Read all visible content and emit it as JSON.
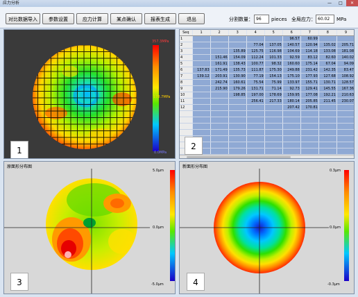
{
  "window": {
    "title": "应力分析",
    "min_label": "—",
    "max_label": "□",
    "close_label": "✕"
  },
  "toolbar": {
    "buttons": [
      "对比数据导入",
      "参数设置",
      "应力计算",
      "某点确认",
      "报表生成",
      "退出"
    ],
    "split_label": "分割数量：",
    "split_value": "96",
    "split_unit": "pieces",
    "stress_label": "全局应力：",
    "stress_value": "60.02",
    "stress_unit": "MPa"
  },
  "panel1": {
    "badge": "1",
    "scale_max": "357.3MPa",
    "scale_mid": "178.7MPa",
    "scale_min": "0.0MPa"
  },
  "panel2": {
    "badge": "2",
    "headers": [
      "Seq",
      "1",
      "2",
      "3",
      "4",
      "5",
      "6",
      "7",
      "8",
      "9"
    ],
    "rows": [
      [
        "1",
        "",
        "",
        "",
        "",
        "",
        "96.57",
        "60.99",
        "",
        ""
      ],
      [
        "2",
        "",
        "",
        "",
        "77.04",
        "137.05",
        "140.57",
        "120.94",
        "135.02",
        "205.71"
      ],
      [
        "3",
        "",
        "",
        "135.89",
        "125.75",
        "116.98",
        "104.69",
        "114.18",
        "133.08",
        "181.08"
      ],
      [
        "4",
        "",
        "151.46",
        "154.09",
        "112.24",
        "101.33",
        "92.59",
        "83.12",
        "82.60",
        "140.02"
      ],
      [
        "5",
        "",
        "161.91",
        "138.43",
        "100.77",
        "98.32",
        "160.60",
        "175.14",
        "67.04",
        "94.09"
      ],
      [
        "6",
        "137.83",
        "171.49",
        "135.73",
        "111.87",
        "175.30",
        "249.88",
        "231.42",
        "142.35",
        "83.47"
      ],
      [
        "7",
        "139.12",
        "203.91",
        "130.90",
        "77.19",
        "154.13",
        "175.10",
        "177.93",
        "127.68",
        "108.92"
      ],
      [
        "8",
        "",
        "242.74",
        "160.61",
        "75.54",
        "75.99",
        "133.97",
        "155.71",
        "130.71",
        "128.57"
      ],
      [
        "9",
        "",
        "215.90",
        "179.26",
        "131.71",
        "71.14",
        "92.73",
        "129.41",
        "145.55",
        "167.36"
      ],
      [
        "10",
        "",
        "",
        "198.85",
        "197.00",
        "178.69",
        "159.95",
        "177.08",
        "192.21",
        "210.63"
      ],
      [
        "11",
        "",
        "",
        "",
        "256.41",
        "217.33",
        "180.14",
        "205.85",
        "211.45",
        "230.07"
      ],
      [
        "12",
        "",
        "",
        "",
        "",
        "",
        "207.42",
        "170.81",
        "",
        ""
      ]
    ]
  },
  "panel3": {
    "badge": "3",
    "title": "原面形分布图",
    "scale_max": "5.0μm",
    "scale_mid": "0.0μm",
    "scale_min": "-5.0μm"
  },
  "panel4": {
    "badge": "4",
    "title": "新面形分布图",
    "scale_max": "0.3μm",
    "scale_mid": "0.0μm",
    "scale_min": "-0.3μm"
  }
}
